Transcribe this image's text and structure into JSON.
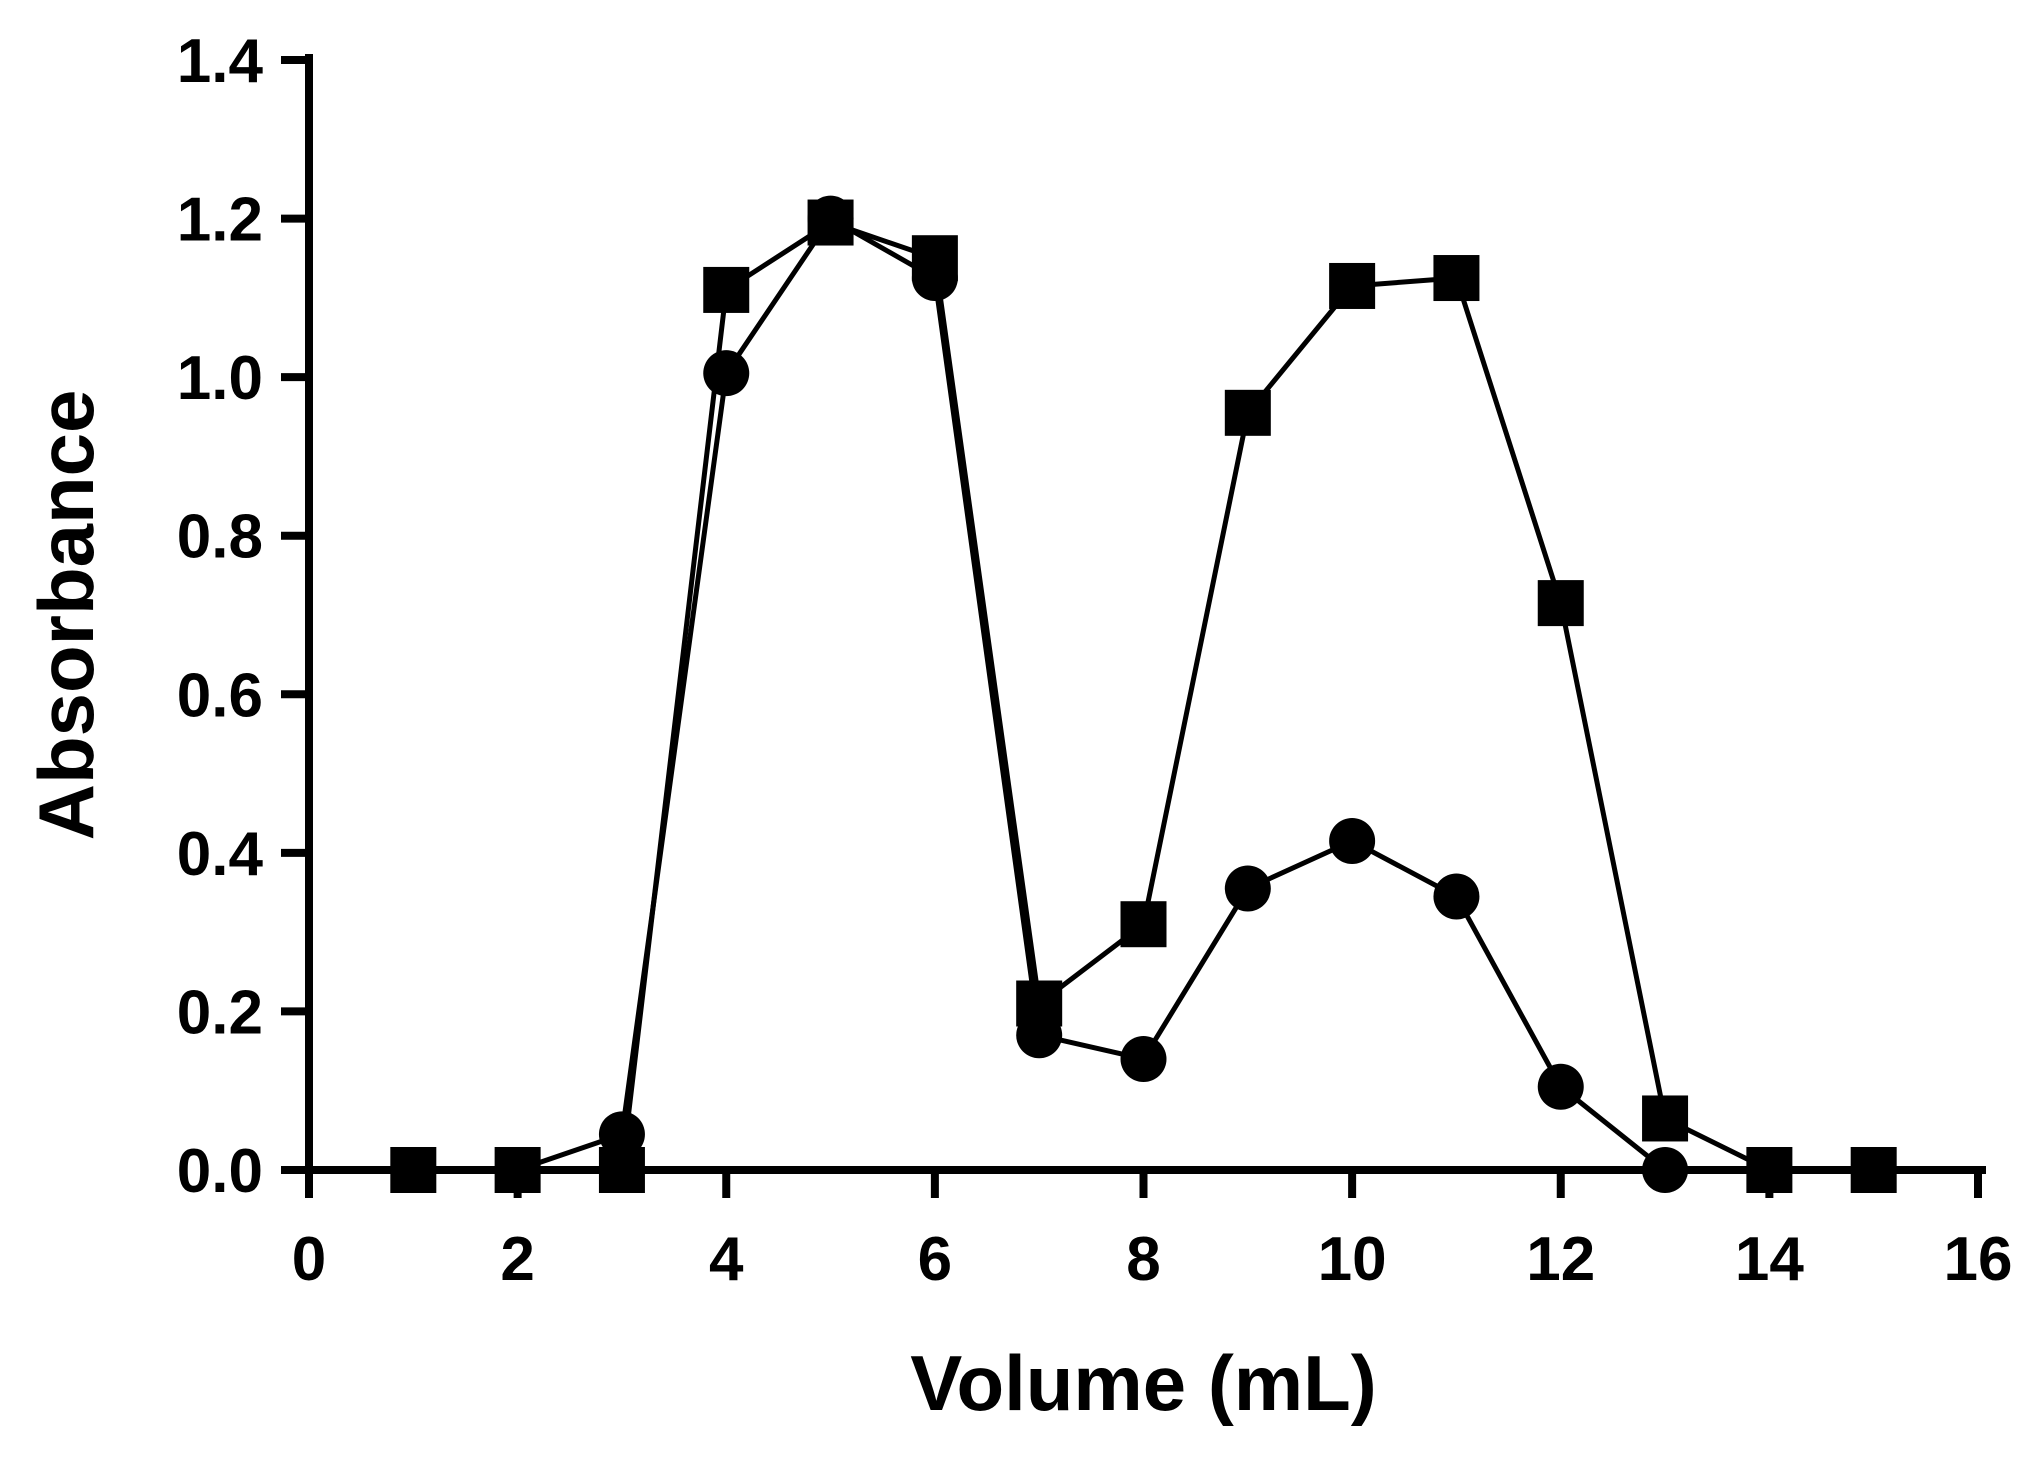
{
  "chart_data": {
    "type": "line",
    "title": "",
    "xlabel": "Volume (mL)",
    "ylabel": "Absorbance",
    "xlim": [
      0,
      16
    ],
    "ylim": [
      0,
      1.4
    ],
    "x_ticks": [
      "0",
      "2",
      "4",
      "6",
      "8",
      "10",
      "12",
      "14",
      "16"
    ],
    "y_ticks": [
      "0.0",
      "0.2",
      "0.4",
      "0.6",
      "0.8",
      "1.0",
      "1.2",
      "1.4"
    ],
    "grid": false,
    "legend": "none",
    "series": [
      {
        "marker": "square",
        "color": "#000000",
        "x": [
          1,
          2,
          3,
          4,
          5,
          6,
          7,
          8,
          9,
          10,
          11,
          12,
          13,
          14,
          15
        ],
        "y": [
          0.0,
          0.0,
          0.0,
          1.11,
          1.195,
          1.15,
          0.21,
          0.31,
          0.955,
          1.115,
          1.125,
          0.715,
          0.065,
          0.0,
          0.0
        ]
      },
      {
        "marker": "circle",
        "color": "#000000",
        "x": [
          1,
          2,
          3,
          4,
          5,
          6,
          7,
          8,
          9,
          10,
          11,
          12,
          13,
          14
        ],
        "y": [
          0.0,
          0.0,
          0.045,
          1.005,
          1.2,
          1.125,
          0.17,
          0.14,
          0.355,
          0.415,
          0.345,
          0.105,
          0.0,
          0.0
        ]
      }
    ]
  }
}
